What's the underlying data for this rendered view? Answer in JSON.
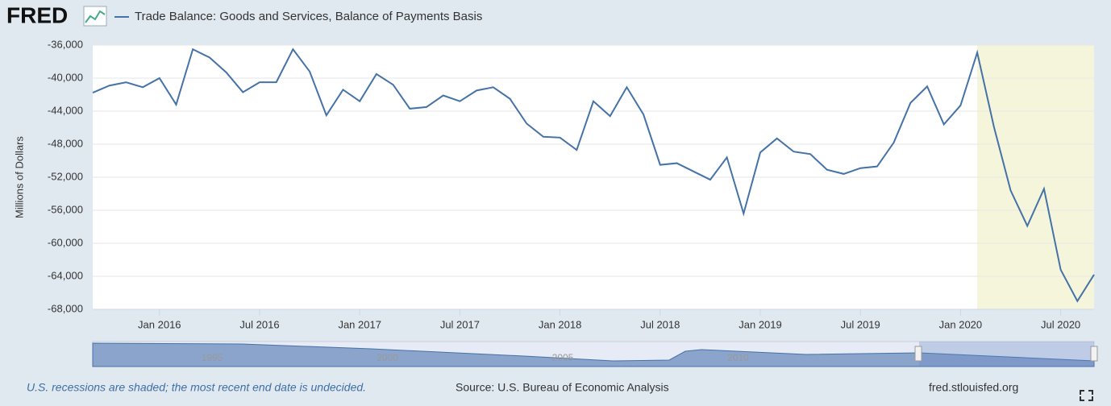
{
  "logo": "FRED",
  "chart_data": {
    "type": "line",
    "series": [
      {
        "name": "Trade Balance: Goods and Services, Balance of Payments Basis",
        "color": "#4572a7",
        "values": [
          -41760,
          -40900,
          -40500,
          -41100,
          -40000,
          -43200,
          -36500,
          -37500,
          -39300,
          -41700,
          -40500,
          -40500,
          -36500,
          -39200,
          -44500,
          -41400,
          -42800,
          -39500,
          -40800,
          -43700,
          -43500,
          -42100,
          -42800,
          -41500,
          -41100,
          -42500,
          -45500,
          -47100,
          -47200,
          -48700,
          -42800,
          -44600,
          -41100,
          -44400,
          -50500,
          -50300,
          -51300,
          -52300,
          -49600,
          -56400,
          -49000,
          -47300,
          -48900,
          -49200,
          -51100,
          -51600,
          -50900,
          -50700,
          -47800,
          -43000,
          -41000,
          -45600,
          -43300,
          -36900,
          -45900,
          -53600,
          -57900,
          -53400,
          -63200,
          -67000,
          -63800
        ]
      }
    ],
    "x": [
      "2015-09",
      "2015-10",
      "2015-11",
      "2015-12",
      "2016-01",
      "2016-02",
      "2016-03",
      "2016-04",
      "2016-05",
      "2016-06",
      "2016-07",
      "2016-08",
      "2016-09",
      "2016-10",
      "2016-11",
      "2016-12",
      "2017-01",
      "2017-02",
      "2017-03",
      "2017-04",
      "2017-05",
      "2017-06",
      "2017-07",
      "2017-08",
      "2017-09",
      "2017-10",
      "2017-11",
      "2017-12",
      "2018-01",
      "2018-02",
      "2018-03",
      "2018-04",
      "2018-05",
      "2018-06",
      "2018-07",
      "2018-08",
      "2018-09",
      "2018-10",
      "2018-11",
      "2018-12",
      "2019-01",
      "2019-02",
      "2019-03",
      "2019-04",
      "2019-05",
      "2019-06",
      "2019-07",
      "2019-08",
      "2019-09",
      "2019-10",
      "2019-11",
      "2019-12",
      "2020-01",
      "2020-02",
      "2020-03",
      "2020-04",
      "2020-05",
      "2020-06",
      "2020-07",
      "2020-08",
      "2020-09"
    ],
    "xticks": [
      {
        "value": "2016-01",
        "label": "Jan 2016"
      },
      {
        "value": "2016-07",
        "label": "Jul 2016"
      },
      {
        "value": "2017-01",
        "label": "Jan 2017"
      },
      {
        "value": "2017-07",
        "label": "Jul 2017"
      },
      {
        "value": "2018-01",
        "label": "Jan 2018"
      },
      {
        "value": "2018-07",
        "label": "Jul 2018"
      },
      {
        "value": "2019-01",
        "label": "Jan 2019"
      },
      {
        "value": "2019-07",
        "label": "Jul 2019"
      },
      {
        "value": "2020-01",
        "label": "Jan 2020"
      },
      {
        "value": "2020-07",
        "label": "Jul 2020"
      }
    ],
    "ylabel": "Millions of Dollars",
    "ylim": [
      -68000,
      -36000
    ],
    "yticks": [
      {
        "value": -68000,
        "label": "-68,000"
      },
      {
        "value": -64000,
        "label": "-64,000"
      },
      {
        "value": -60000,
        "label": "-60,000"
      },
      {
        "value": -56000,
        "label": "-56,000"
      },
      {
        "value": -52000,
        "label": "-52,000"
      },
      {
        "value": -48000,
        "label": "-48,000"
      },
      {
        "value": -44000,
        "label": "-44,000"
      },
      {
        "value": -40000,
        "label": "-40,000"
      },
      {
        "value": -36000,
        "label": "-36,000"
      }
    ],
    "grid": true,
    "recessions": [
      {
        "start": "2020-02"
      }
    ],
    "recession_color": "#f5f5dc",
    "navigator_years": [
      "1995",
      "2000",
      "2005",
      "2010"
    ]
  },
  "footer": {
    "note": "U.S. recessions are shaded; the most recent end date is undecided.",
    "source": "Source: U.S. Bureau of Economic Analysis",
    "site": "fred.stlouisfed.org"
  }
}
